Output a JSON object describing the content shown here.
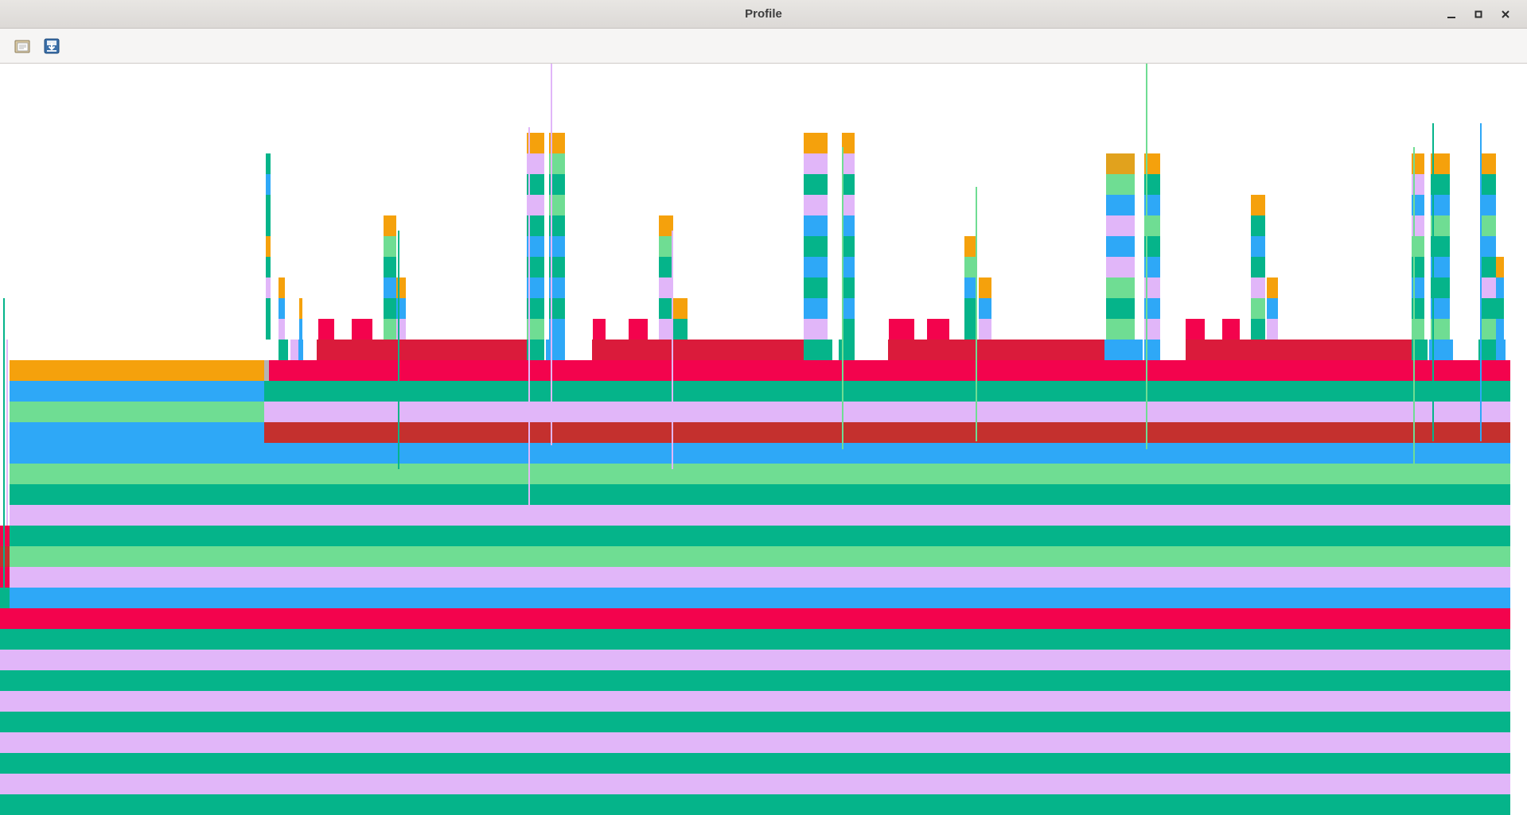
{
  "window": {
    "title": "Profile"
  },
  "controls": {
    "minimize": "–",
    "maximize": "▫",
    "close": "✕"
  },
  "toolbar": {
    "buttons": [
      {
        "icon": "open-folder-icon"
      },
      {
        "icon": "save-download-icon"
      }
    ]
  },
  "colors": {
    "orange": "#f5a10c",
    "blue": "#2ea8f7",
    "light_green": "#6fdd93",
    "teal": "#05b48a",
    "lavender": "#e1b6f9",
    "red": "#c4302e",
    "crimson": "#f3034d",
    "dark_crimson": "#da1b3b",
    "gold": "#e1a21d"
  },
  "flame_graph": {
    "description_free": true
  }
}
